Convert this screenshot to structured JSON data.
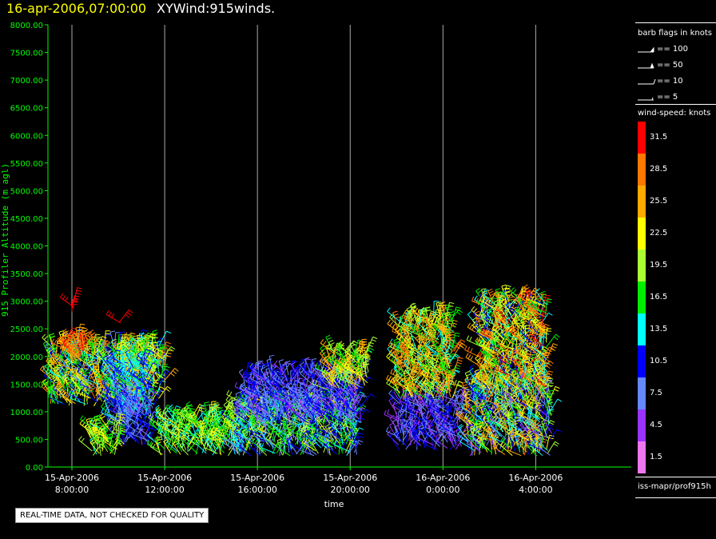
{
  "header": {
    "date_label": "16-apr-2006,07:00:00",
    "product_label": "XYWind:915winds."
  },
  "legend": {
    "flags_title": "barb flags in knots",
    "flags": [
      {
        "label": "== 100"
      },
      {
        "label": "== 50"
      },
      {
        "label": "== 10"
      },
      {
        "label": "== 5"
      }
    ],
    "speed_title": "wind-speed: knots",
    "colorbar": [
      {
        "label": "31.5",
        "color": "#ff0000"
      },
      {
        "label": "28.5",
        "color": "#ff7700"
      },
      {
        "label": "25.5",
        "color": "#ffaa00"
      },
      {
        "label": "22.5",
        "color": "#ffff00"
      },
      {
        "label": "19.5",
        "color": "#aaff33"
      },
      {
        "label": "16.5",
        "color": "#00ee00"
      },
      {
        "label": "13.5",
        "color": "#00ffff"
      },
      {
        "label": "10.5",
        "color": "#0000ff"
      },
      {
        "label": "7.5",
        "color": "#6688ff"
      },
      {
        "label": "4.5",
        "color": "#9933ff"
      },
      {
        "label": "1.5",
        "color": "#ee77ee"
      }
    ],
    "source": "iss-mapr/prof915h"
  },
  "footer": {
    "qc_note": "REAL-TIME DATA, NOT CHECKED FOR QUALITY"
  },
  "chart_data": {
    "type": "scatter",
    "xlabel": "time",
    "ylabel": "915 Profiler Altitude (m agl)",
    "ylim": [
      0,
      8000
    ],
    "yticks": [
      "0.00",
      "500.00",
      "1000.00",
      "1500.00",
      "2000.00",
      "2500.00",
      "3000.00",
      "3500.00",
      "4000.00",
      "4500.00",
      "5000.00",
      "5500.00",
      "6000.00",
      "6500.00",
      "7000.00",
      "7500.00",
      "8000.00"
    ],
    "xticks": [
      {
        "line1": "15-Apr-2006",
        "line2": "8:00:00"
      },
      {
        "line1": "15-Apr-2006",
        "line2": "12:00:00"
      },
      {
        "line1": "15-Apr-2006",
        "line2": "16:00:00"
      },
      {
        "line1": "15-Apr-2006",
        "line2": "20:00:00"
      },
      {
        "line1": "16-Apr-2006",
        "line2": "0:00:00"
      },
      {
        "line1": "16-Apr-2006",
        "line2": "4:00:00"
      }
    ],
    "xlim_hours_since_first_tick": [
      -1,
      7.0
    ],
    "grid": "vertical at ticks",
    "colors": {
      "axis": "#00ff00",
      "text": "#ffffff",
      "grid": "#aaaaaa"
    },
    "wind_clusters": [
      {
        "t": [
          -0.95,
          3.8
        ],
        "alt": [
          1100,
          2200
        ],
        "speed": [
          8,
          28
        ]
      },
      {
        "t": [
          -0.3,
          0.5
        ],
        "alt": [
          1900,
          2300
        ],
        "speed": [
          26,
          31
        ]
      },
      {
        "t": [
          2.0,
          4.0
        ],
        "alt": [
          1500,
          2100
        ],
        "speed": [
          12,
          28
        ]
      },
      {
        "t": [
          1.6,
          3.3
        ],
        "alt": [
          800,
          1900
        ],
        "speed": [
          8,
          16
        ]
      },
      {
        "t": [
          1.9,
          3.5
        ],
        "alt": [
          400,
          1200
        ],
        "speed": [
          5,
          12
        ]
      },
      {
        "t": [
          0.8,
          2.0
        ],
        "alt": [
          200,
          700
        ],
        "speed": [
          14,
          24
        ]
      },
      {
        "t": [
          -0.1,
          0.1
        ],
        "alt": [
          2750,
          3000
        ],
        "speed": [
          30,
          32
        ]
      },
      {
        "t": [
          2.0,
          2.3
        ],
        "alt": [
          2550,
          2650
        ],
        "speed": [
          29,
          32
        ]
      },
      {
        "t": [
          3.7,
          7.3
        ],
        "alt": [
          200,
          900
        ],
        "speed": [
          12,
          24
        ]
      },
      {
        "t": [
          7.0,
          12.3
        ],
        "alt": [
          200,
          1200
        ],
        "speed": [
          6,
          22
        ]
      },
      {
        "t": [
          7.5,
          12.5
        ],
        "alt": [
          800,
          1700
        ],
        "speed": [
          4,
          12
        ]
      },
      {
        "t": [
          11.0,
          12.8
        ],
        "alt": [
          1400,
          2100
        ],
        "speed": [
          14,
          26
        ]
      },
      {
        "t": [
          14.0,
          16.8
        ],
        "alt": [
          300,
          1200
        ],
        "speed": [
          3,
          12
        ]
      },
      {
        "t": [
          14.0,
          16.5
        ],
        "alt": [
          1200,
          2700
        ],
        "speed": [
          12,
          30
        ]
      },
      {
        "t": [
          17.0,
          20.7
        ],
        "alt": [
          200,
          1500
        ],
        "speed": [
          5,
          28
        ]
      },
      {
        "t": [
          17.5,
          20.5
        ],
        "alt": [
          1400,
          3000
        ],
        "speed": [
          10,
          31
        ]
      }
    ]
  }
}
